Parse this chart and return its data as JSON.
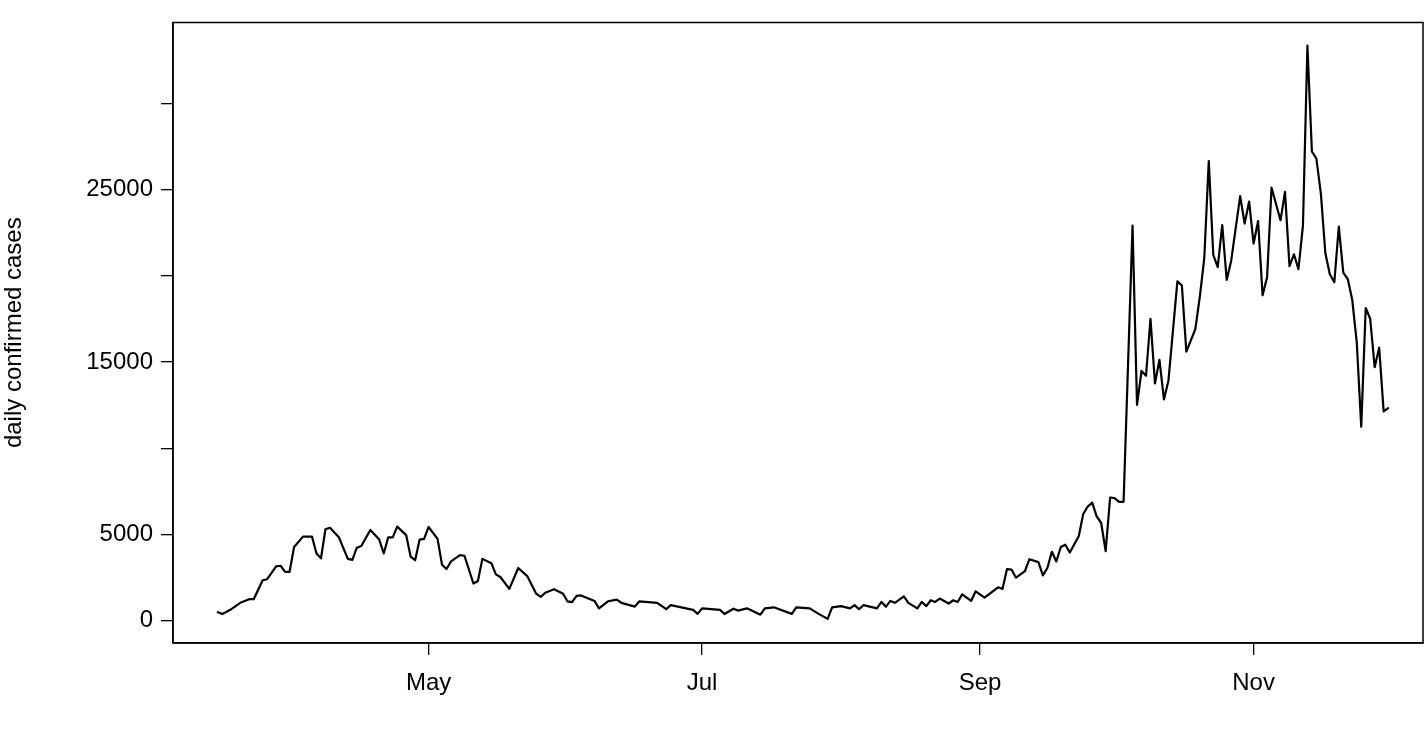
{
  "chart_data": {
    "type": "line",
    "ylabel": "daily confirmed cases",
    "x": [
      "--03-15",
      "--03-16",
      "--03-18",
      "--03-20",
      "--03-22",
      "--03-23",
      "--03-25",
      "--03-26",
      "--03-28",
      "--03-29",
      "--03-30",
      "--03-31",
      "--04-01",
      "--04-03",
      "--04-05",
      "--04-06",
      "--04-07",
      "--04-08",
      "--04-09",
      "--04-11",
      "--04-13",
      "--04-14",
      "--04-15",
      "--04-16",
      "--04-18",
      "--04-20",
      "--04-21",
      "--04-22",
      "--04-23",
      "--04-24",
      "--04-26",
      "--04-27",
      "--04-28",
      "--04-29",
      "--04-30",
      "--05-01",
      "--05-03",
      "--05-04",
      "--05-05",
      "--05-06",
      "--05-08",
      "--05-09",
      "--05-11",
      "--05-12",
      "--05-13",
      "--05-15",
      "--05-16",
      "--05-17",
      "--05-19",
      "--05-21",
      "--05-23",
      "--05-25",
      "--05-26",
      "--05-27",
      "--05-29",
      "--05-31",
      "--06-01",
      "--06-02",
      "--06-03",
      "--06-04",
      "--06-07",
      "--06-08",
      "--06-10",
      "--06-12",
      "--06-13",
      "--06-16",
      "--06-17",
      "--06-21",
      "--06-23",
      "--06-24",
      "--06-29",
      "--06-30",
      "--07-01",
      "--07-05",
      "--07-06",
      "--07-08",
      "--07-09",
      "--07-11",
      "--07-14",
      "--07-15",
      "--07-17",
      "--07-21",
      "--07-22",
      "--07-25",
      "--07-27",
      "--07-29",
      "--07-30",
      "--08-01",
      "--08-03",
      "--08-04",
      "--08-05",
      "--08-06",
      "--08-09",
      "--08-10",
      "--08-11",
      "--08-12",
      "--08-13",
      "--08-15",
      "--08-16",
      "--08-18",
      "--08-19",
      "--08-20",
      "--08-21",
      "--08-22",
      "--08-23",
      "--08-25",
      "--08-26",
      "--08-27",
      "--08-28",
      "--08-30",
      "--08-31",
      "--09-02",
      "--09-05",
      "--09-06",
      "--09-07",
      "--09-08",
      "--09-09",
      "--09-11",
      "--09-12",
      "--09-14",
      "--09-15",
      "--09-16",
      "--09-17",
      "--09-18",
      "--09-19",
      "--09-20",
      "--09-21",
      "--09-23",
      "--09-24",
      "--09-25",
      "--09-26",
      "--09-27",
      "--09-28",
      "--09-29",
      "--09-30",
      "--10-01",
      "--10-02",
      "--10-03",
      "--10-05",
      "--10-06",
      "--10-07",
      "--10-08",
      "--10-09",
      "--10-10",
      "--10-11",
      "--10-12",
      "--10-13",
      "--10-15",
      "--10-16",
      "--10-17",
      "--10-19",
      "--10-20",
      "--10-21",
      "--10-22",
      "--10-23",
      "--10-24",
      "--10-25",
      "--10-26",
      "--10-27",
      "--10-29",
      "--10-30",
      "--10-31",
      "--11-01",
      "--11-02",
      "--11-03",
      "--11-04",
      "--11-05",
      "--11-07",
      "--11-08",
      "--11-09",
      "--11-10",
      "--11-11",
      "--11-12",
      "--11-13",
      "--11-14",
      "--11-15",
      "--11-16",
      "--11-17",
      "--11-18",
      "--11-19",
      "--11-20",
      "--11-21",
      "--11-22",
      "--11-23",
      "--11-24",
      "--11-25",
      "--11-26",
      "--11-27",
      "--11-28",
      "--11-29",
      "--11-30",
      "--12-01"
    ],
    "series": [
      {
        "color": "#000000",
        "values": [
          490,
          380,
          660,
          1030,
          1240,
          1240,
          2340,
          2400,
          3150,
          3180,
          2830,
          2830,
          4270,
          4870,
          4870,
          3890,
          3610,
          5300,
          5390,
          4830,
          3580,
          3520,
          4230,
          4330,
          5260,
          4700,
          3890,
          4830,
          4830,
          5450,
          4960,
          3710,
          3500,
          4700,
          4740,
          5430,
          4740,
          3240,
          2990,
          3430,
          3800,
          3760,
          2150,
          2300,
          3580,
          3330,
          2680,
          2530,
          1840,
          3050,
          2580,
          1560,
          1370,
          1610,
          1820,
          1560,
          1110,
          1070,
          1440,
          1460,
          1140,
          710,
          1120,
          1220,
          1030,
          810,
          1120,
          1030,
          660,
          900,
          620,
          390,
          710,
          620,
          380,
          690,
          580,
          710,
          340,
          710,
          770,
          390,
          770,
          710,
          390,
          100,
          770,
          840,
          710,
          900,
          660,
          900,
          710,
          1080,
          810,
          1140,
          1030,
          1410,
          1030,
          710,
          1080,
          840,
          1180,
          1080,
          1280,
          990,
          1180,
          1080,
          1520,
          1140,
          1700,
          1330,
          1930,
          1840,
          2990,
          2960,
          2490,
          2870,
          3560,
          3390,
          2620,
          3050,
          3990,
          3430,
          4270,
          4400,
          3950,
          4890,
          6180,
          6610,
          6840,
          6050,
          5670,
          4030,
          7140,
          7100,
          6890,
          6890,
          22910,
          12510,
          14480,
          14200,
          17510,
          13760,
          15130,
          12830,
          13910,
          19680,
          19440,
          15600,
          16910,
          18780,
          21030,
          26650,
          21220,
          20510,
          22940,
          19760,
          20880,
          24620,
          23030,
          24310,
          21870,
          23180,
          18870,
          19910,
          25110,
          23220,
          24870,
          20560,
          21250,
          20380,
          22910,
          33350,
          27210,
          26800,
          24770,
          21310,
          20090,
          19630,
          22850,
          20190,
          19810,
          18600,
          16160,
          11250,
          18130,
          17510,
          14700,
          15830,
          12140,
          12320
        ]
      }
    ],
    "xlim": [
      "--03-05",
      "--12-09"
    ],
    "xticks": [
      {
        "value": "--05-01",
        "label": "May"
      },
      {
        "value": "--07-01",
        "label": "Jul"
      },
      {
        "value": "--09-01",
        "label": "Sep"
      },
      {
        "value": "--11-01",
        "label": "Nov"
      }
    ],
    "ylim": [
      -1300,
      34700
    ],
    "yticks": [
      0,
      5000,
      {
        "value": 10000,
        "label": null
      },
      15000,
      {
        "value": 20000,
        "label": null
      },
      25000,
      {
        "value": 30000,
        "label": null
      }
    ],
    "grid": false,
    "legend": false,
    "marker": "none",
    "line_style": "solid"
  }
}
